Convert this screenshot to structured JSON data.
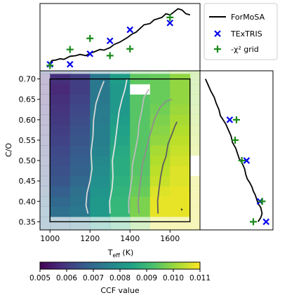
{
  "figure": {
    "legend": {
      "entries": [
        {
          "label": "ForMoSA",
          "kind": "line",
          "color": "#000000"
        },
        {
          "label": "TExTRIS",
          "kind": "x-marker",
          "color": "#0000ee"
        },
        {
          "label": "-χ² grid",
          "kind": "plus-marker",
          "color": "#1a8a1a"
        }
      ]
    }
  },
  "chart_data": [
    {
      "type": "heatmap",
      "panel": "main",
      "xlabel_main": "T",
      "xlabel_sub": "eff",
      "xlabel_unit": " (K)",
      "ylabel": "C/O",
      "xlim": [
        950,
        1750
      ],
      "ylim": [
        0.33,
        0.72
      ],
      "xticks": [
        1000,
        1200,
        1400,
        1600
      ],
      "yticks": [
        0.35,
        0.4,
        0.45,
        0.5,
        0.55,
        0.6,
        0.65,
        0.7
      ],
      "colorbar": {
        "label": "CCF value",
        "vmin": 0.005,
        "vmax": 0.011,
        "ticks": [
          0.005,
          0.006,
          0.007,
          0.008,
          0.009,
          0.01,
          0.011
        ],
        "colormap": "viridis"
      },
      "x_centers": [
        975,
        1050,
        1150,
        1250,
        1350,
        1450,
        1550,
        1650,
        1725
      ],
      "x_edges": [
        950,
        1000,
        1100,
        1200,
        1300,
        1400,
        1500,
        1600,
        1700,
        1750
      ],
      "y_centers": [
        0.35,
        0.375,
        0.4,
        0.425,
        0.45,
        0.475,
        0.5,
        0.525,
        0.55,
        0.575,
        0.6,
        0.625,
        0.65,
        0.675,
        0.7,
        0.715
      ],
      "y_edges": [
        0.33,
        0.3625,
        0.3875,
        0.4125,
        0.4375,
        0.4625,
        0.4875,
        0.5125,
        0.5375,
        0.5625,
        0.5875,
        0.6125,
        0.6375,
        0.6625,
        0.6875,
        0.7125,
        0.72
      ],
      "values": [
        [
          0.0072,
          0.0072,
          0.0074,
          0.0082,
          0.009,
          0.0098,
          0.0108,
          0.0108,
          0.0108
        ],
        [
          0.0072,
          0.0072,
          0.0074,
          0.0082,
          0.009,
          0.0098,
          0.0108,
          0.0108,
          0.0108
        ],
        [
          0.007,
          0.007,
          0.0073,
          0.0082,
          0.009,
          0.0098,
          0.0108,
          0.0108,
          0.0108
        ],
        [
          0.0068,
          0.0068,
          0.0072,
          0.0081,
          0.0089,
          0.0096,
          0.0107,
          0.0108,
          0.0108
        ],
        [
          0.0066,
          0.0066,
          0.007,
          0.008,
          0.0088,
          0.0095,
          0.0105,
          0.0107,
          0.0107
        ],
        [
          0.0065,
          0.0065,
          0.0069,
          0.0079,
          0.0087,
          0.0094,
          0.0104,
          0.0107,
          null
        ],
        [
          0.0064,
          0.0064,
          0.0068,
          0.0078,
          0.0087,
          0.0094,
          0.0103,
          0.0106,
          null
        ],
        [
          0.0063,
          0.0063,
          0.0067,
          0.0077,
          0.0086,
          0.0094,
          0.0102,
          0.0105,
          0.0105
        ],
        [
          0.0062,
          0.0062,
          0.0066,
          0.0076,
          0.0085,
          0.0094,
          0.01,
          0.0104,
          0.0104
        ],
        [
          0.0061,
          0.0061,
          0.0065,
          0.0076,
          0.0084,
          0.0094,
          0.0099,
          0.0103,
          0.0103
        ],
        [
          0.006,
          0.006,
          0.0064,
          0.0075,
          0.0083,
          0.0094,
          0.0098,
          0.0102,
          0.0102
        ],
        [
          0.0059,
          0.0059,
          0.0063,
          0.0075,
          0.0082,
          0.0094,
          0.0097,
          0.0101,
          0.0101
        ],
        [
          0.0058,
          0.0058,
          0.0062,
          0.0074,
          0.0082,
          0.0094,
          0.0096,
          0.01,
          0.01
        ],
        [
          0.0057,
          0.0057,
          0.0061,
          0.0074,
          0.0082,
          null,
          0.0096,
          0.01,
          0.01
        ],
        [
          0.0058,
          0.0058,
          0.0061,
          0.0074,
          0.0083,
          0.0095,
          0.0096,
          0.01,
          0.01
        ],
        [
          0.0065,
          0.0065,
          0.0068,
          0.0074,
          0.0083,
          0.0095,
          0.0096,
          0.01,
          0.01
        ]
      ],
      "contours": [
        {
          "shade": "#d8d8d8",
          "points": [
            [
              1190,
              0.37
            ],
            [
              1180,
              0.39
            ],
            [
              1185,
              0.42
            ],
            [
              1200,
              0.45
            ],
            [
              1210,
              0.48
            ],
            [
              1205,
              0.52
            ],
            [
              1215,
              0.56
            ],
            [
              1218,
              0.6
            ],
            [
              1230,
              0.64
            ],
            [
              1250,
              0.67
            ],
            [
              1270,
              0.695
            ]
          ]
        },
        {
          "shade": "#e2e2e2",
          "points": [
            [
              1300,
              0.37
            ],
            [
              1298,
              0.4
            ],
            [
              1310,
              0.43
            ],
            [
              1315,
              0.46
            ],
            [
              1312,
              0.5
            ],
            [
              1325,
              0.54
            ],
            [
              1335,
              0.58
            ],
            [
              1345,
              0.62
            ],
            [
              1360,
              0.65
            ],
            [
              1375,
              0.675
            ],
            [
              1385,
              0.7
            ]
          ]
        },
        {
          "shade": "#bdbdbd",
          "points": [
            [
              1395,
              0.37
            ],
            [
              1393,
              0.4
            ],
            [
              1402,
              0.43
            ],
            [
              1410,
              0.46
            ],
            [
              1412,
              0.49
            ],
            [
              1425,
              0.52
            ],
            [
              1440,
              0.56
            ],
            [
              1445,
              0.59
            ],
            [
              1460,
              0.625
            ],
            [
              1470,
              0.655
            ],
            [
              1495,
              0.675
            ]
          ]
        },
        {
          "shade": "#8e8e8e",
          "points": [
            [
              1445,
              0.37
            ],
            [
              1440,
              0.4
            ],
            [
              1448,
              0.43
            ],
            [
              1455,
              0.46
            ],
            [
              1462,
              0.49
            ],
            [
              1478,
              0.52
            ],
            [
              1492,
              0.55
            ],
            [
              1510,
              0.58
            ],
            [
              1525,
              0.605
            ],
            [
              1550,
              0.63
            ],
            [
              1580,
              0.645
            ],
            [
              1610,
              0.65
            ]
          ]
        },
        {
          "shade": "#5e5e5e",
          "points": [
            [
              1540,
              0.37
            ],
            [
              1538,
              0.4
            ],
            [
              1545,
              0.43
            ],
            [
              1553,
              0.46
            ],
            [
              1565,
              0.49
            ],
            [
              1580,
              0.51
            ],
            [
              1590,
              0.54
            ],
            [
              1610,
              0.565
            ],
            [
              1625,
              0.585
            ],
            [
              1635,
              0.595
            ]
          ]
        },
        {
          "shade": "#222222",
          "points": [
            [
              1657,
              0.382
            ],
            [
              1660,
              0.378
            ]
          ]
        }
      ],
      "grid_box": {
        "x": [
          1000,
          1700
        ],
        "y": [
          0.35,
          0.7
        ]
      }
    },
    {
      "type": "line",
      "panel": "top-marginal",
      "shares_x_with": "main",
      "ylim": [
        0,
        1
      ],
      "series": [
        {
          "name": "ForMoSA",
          "style": "line",
          "color": "#000000",
          "x": [
            1000,
            1010,
            1030,
            1050,
            1070,
            1100,
            1130,
            1150,
            1180,
            1200,
            1220,
            1250,
            1270,
            1300,
            1320,
            1350,
            1370,
            1390,
            1410,
            1430,
            1450,
            1470,
            1500,
            1520,
            1540,
            1560,
            1580,
            1600,
            1620,
            1640,
            1660,
            1680,
            1700
          ],
          "y": [
            0.08,
            0.12,
            0.13,
            0.15,
            0.14,
            0.19,
            0.2,
            0.22,
            0.2,
            0.24,
            0.26,
            0.3,
            0.29,
            0.33,
            0.38,
            0.42,
            0.46,
            0.5,
            0.55,
            0.58,
            0.64,
            0.7,
            0.72,
            0.78,
            0.8,
            0.82,
            0.88,
            0.86,
            0.91,
            0.96,
            0.94,
            0.88,
            0.86
          ]
        },
        {
          "name": "TExTRIS",
          "style": "x",
          "color": "#0000ee",
          "x": [
            1000,
            1100,
            1200,
            1300,
            1400,
            1600
          ],
          "y": [
            0.06,
            0.06,
            0.23,
            0.44,
            0.62,
            0.73
          ]
        },
        {
          "name": "-χ² grid",
          "style": "plus",
          "color": "#1a8a1a",
          "x": [
            1000,
            1100,
            1200,
            1300,
            1400,
            1600
          ],
          "y": [
            0.04,
            0.3,
            0.48,
            0.2,
            0.31,
            0.82
          ]
        }
      ]
    },
    {
      "type": "line",
      "panel": "right-marginal",
      "shares_y_with": "main",
      "xlim": [
        0,
        1
      ],
      "series": [
        {
          "name": "ForMoSA",
          "style": "line",
          "color": "#000000",
          "x": [
            0.04,
            0.08,
            0.12,
            0.17,
            0.2,
            0.24,
            0.26,
            0.3,
            0.34,
            0.38,
            0.42,
            0.44,
            0.49,
            0.52,
            0.54,
            0.58,
            0.62,
            0.64,
            0.66,
            0.7,
            0.73,
            0.75,
            0.78,
            0.8,
            0.82,
            0.86,
            0.88,
            0.86,
            0.82
          ],
          "y": [
            0.7,
            0.685,
            0.67,
            0.655,
            0.64,
            0.625,
            0.61,
            0.6,
            0.59,
            0.575,
            0.56,
            0.545,
            0.53,
            0.515,
            0.505,
            0.495,
            0.48,
            0.465,
            0.455,
            0.445,
            0.435,
            0.425,
            0.415,
            0.405,
            0.395,
            0.385,
            0.37,
            0.36,
            0.35
          ]
        },
        {
          "name": "TExTRIS",
          "style": "x",
          "color": "#0000ee",
          "x": [
            0.4,
            0.65,
            0.85,
            0.94
          ],
          "y": [
            0.6,
            0.5,
            0.4,
            0.35
          ]
        },
        {
          "name": "-χ² grid",
          "style": "plus",
          "color": "#1a8a1a",
          "x": [
            0.5,
            0.48,
            0.58,
            0.88,
            0.75
          ],
          "y": [
            0.6,
            0.55,
            0.5,
            0.4,
            0.35
          ]
        }
      ]
    }
  ]
}
